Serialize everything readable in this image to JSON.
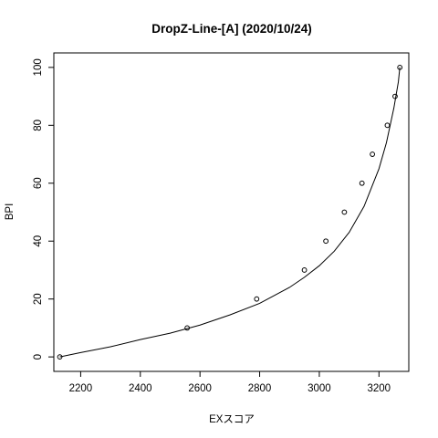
{
  "chart_data": {
    "type": "scatter",
    "title": "DropZ-Line-[A] (2020/10/24)",
    "xlabel": "EXスコア",
    "ylabel": "BPI",
    "xlim": [
      2110,
      3300
    ],
    "ylim": [
      -5,
      105
    ],
    "xticks": [
      2200,
      2400,
      2600,
      2800,
      3000,
      3200
    ],
    "yticks": [
      0,
      20,
      40,
      60,
      80,
      100
    ],
    "grid": false,
    "points": {
      "x": [
        2130,
        2557,
        2790,
        2950,
        3022,
        3084,
        3143,
        3178,
        3228,
        3254,
        3270
      ],
      "y": [
        0,
        10,
        20,
        30,
        40,
        50,
        60,
        70,
        80,
        90,
        100
      ]
    },
    "curve": {
      "x": [
        2130,
        2200,
        2300,
        2400,
        2500,
        2600,
        2700,
        2800,
        2900,
        2950,
        3000,
        3050,
        3100,
        3150,
        3200,
        3225,
        3250,
        3265,
        3270
      ],
      "y": [
        0,
        1.5,
        3.5,
        6,
        8.2,
        11,
        14.5,
        18.5,
        24,
        27.5,
        31.5,
        36.5,
        43,
        52,
        65,
        74,
        86,
        95,
        100
      ]
    },
    "marker": "open-circle",
    "line_color": "#000000",
    "point_color": "#000000"
  }
}
